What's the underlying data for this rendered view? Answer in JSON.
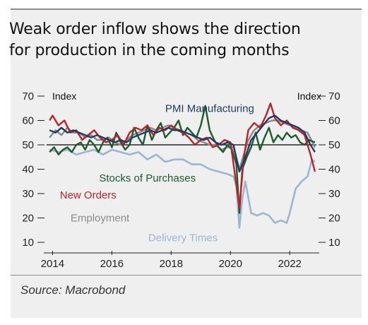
{
  "title_line1": "Weak order inflow shows the direction",
  "title_line2": "for production in the coming months",
  "source": "Source: Macrobond",
  "chart_data": {
    "type": "line",
    "title": "Weak order inflow shows the direction for production in the coming months",
    "ylabel_left": "Index",
    "ylabel_right": "Index",
    "ylim": [
      10,
      70
    ],
    "yticks": [
      10,
      20,
      30,
      40,
      50,
      60,
      70
    ],
    "xlim": [
      2013.8,
      2022.9
    ],
    "xticks": [
      2014,
      2016,
      2018,
      2020,
      2022
    ],
    "reference_line": 50,
    "grid": false,
    "series": [
      {
        "name": "PMI Manufacturing",
        "color": "#1f3b64",
        "label_pos": [
          2019.3,
          63.5
        ],
        "x": [
          2013.9,
          2014.1,
          2014.3,
          2014.5,
          2014.7,
          2014.9,
          2015.1,
          2015.3,
          2015.5,
          2015.7,
          2015.9,
          2016.1,
          2016.3,
          2016.5,
          2016.7,
          2016.9,
          2017.1,
          2017.3,
          2017.5,
          2017.7,
          2017.9,
          2018.1,
          2018.3,
          2018.5,
          2018.7,
          2018.9,
          2019.1,
          2019.3,
          2019.5,
          2019.7,
          2019.9,
          2020.1,
          2020.3,
          2020.5,
          2020.7,
          2020.9,
          2021.1,
          2021.3,
          2021.5,
          2021.7,
          2021.9,
          2022.1,
          2022.3,
          2022.5,
          2022.7,
          2022.85
        ],
        "values": [
          56,
          55,
          57,
          55,
          56,
          55,
          54,
          53,
          54,
          53,
          52,
          51,
          52,
          51,
          53,
          54,
          55,
          56,
          55,
          56,
          57,
          56,
          56,
          55,
          54,
          53,
          52,
          53,
          51,
          50,
          51,
          50,
          39,
          45,
          52,
          55,
          58,
          61,
          62,
          60,
          59,
          58,
          57,
          55,
          50,
          47
        ]
      },
      {
        "name": "New Orders",
        "color": "#b8232b",
        "label_pos": [
          2015.2,
          28
        ],
        "x": [
          2013.9,
          2014.0,
          2014.2,
          2014.4,
          2014.6,
          2014.8,
          2015.0,
          2015.2,
          2015.4,
          2015.6,
          2015.8,
          2016.0,
          2016.2,
          2016.4,
          2016.6,
          2016.8,
          2017.0,
          2017.2,
          2017.4,
          2017.6,
          2017.8,
          2018.0,
          2018.2,
          2018.4,
          2018.6,
          2018.8,
          2019.0,
          2019.2,
          2019.4,
          2019.6,
          2019.8,
          2020.0,
          2020.15,
          2020.3,
          2020.45,
          2020.6,
          2020.8,
          2021.0,
          2021.2,
          2021.35,
          2021.5,
          2021.7,
          2021.9,
          2022.1,
          2022.3,
          2022.5,
          2022.7,
          2022.85
        ],
        "values": [
          60,
          62,
          58,
          60,
          55,
          56,
          52,
          54,
          56,
          53,
          51,
          52,
          54,
          50,
          55,
          57,
          56,
          58,
          54,
          57,
          56,
          58,
          56,
          55,
          53,
          50,
          52,
          53,
          49,
          50,
          52,
          51,
          38,
          24,
          45,
          56,
          59,
          57,
          62,
          67,
          61,
          58,
          60,
          57,
          56,
          54,
          46,
          39
        ]
      },
      {
        "name": "Employment",
        "color": "#8a8a8a",
        "label_pos": [
          2015.6,
          18.5
        ],
        "x": [
          2013.9,
          2014.1,
          2014.3,
          2014.5,
          2014.7,
          2014.9,
          2015.1,
          2015.3,
          2015.5,
          2015.7,
          2015.9,
          2016.1,
          2016.3,
          2016.5,
          2016.7,
          2016.9,
          2017.1,
          2017.3,
          2017.5,
          2017.7,
          2017.9,
          2018.1,
          2018.3,
          2018.5,
          2018.7,
          2018.9,
          2019.1,
          2019.3,
          2019.5,
          2019.7,
          2019.9,
          2020.1,
          2020.3,
          2020.45,
          2020.6,
          2020.8,
          2021.0,
          2021.2,
          2021.4,
          2021.6,
          2021.8,
          2022.0,
          2022.2,
          2022.4,
          2022.6,
          2022.85
        ],
        "values": [
          53,
          56,
          54,
          57,
          55,
          55,
          53,
          54,
          52,
          52,
          53,
          51,
          50,
          52,
          54,
          55,
          56,
          57,
          56,
          57,
          58,
          57,
          56,
          55,
          54,
          52,
          51,
          50,
          50,
          48,
          49,
          49,
          40,
          46,
          52,
          56,
          58,
          59,
          60,
          60,
          59,
          58,
          57,
          56,
          55,
          49
        ]
      },
      {
        "name": "Stocks of Purchases",
        "color": "#1d5a2e",
        "label_pos": [
          2017.2,
          35
        ],
        "x": [
          2013.9,
          2014.05,
          2014.2,
          2014.35,
          2014.5,
          2014.65,
          2014.8,
          2014.95,
          2015.1,
          2015.25,
          2015.4,
          2015.55,
          2015.7,
          2015.85,
          2016.0,
          2016.15,
          2016.3,
          2016.45,
          2016.6,
          2016.75,
          2016.9,
          2017.05,
          2017.2,
          2017.35,
          2017.5,
          2017.65,
          2017.8,
          2017.95,
          2018.1,
          2018.25,
          2018.4,
          2018.55,
          2018.7,
          2018.85,
          2019.0,
          2019.15,
          2019.3,
          2019.45,
          2019.6,
          2019.75,
          2019.9,
          2020.05,
          2020.2,
          2020.3,
          2020.4,
          2020.55,
          2020.7,
          2020.85,
          2021.0,
          2021.15,
          2021.3,
          2021.45,
          2021.6,
          2021.75,
          2021.9,
          2022.05,
          2022.2,
          2022.35,
          2022.5,
          2022.65,
          2022.85
        ],
        "values": [
          47,
          49,
          46,
          48,
          49,
          47,
          50,
          51,
          48,
          52,
          50,
          47,
          51,
          53,
          49,
          55,
          51,
          48,
          50,
          57,
          53,
          50,
          58,
          52,
          56,
          59,
          53,
          55,
          57,
          60,
          54,
          57,
          55,
          53,
          58,
          66,
          56,
          52,
          49,
          47,
          50,
          48,
          42,
          22,
          40,
          45,
          49,
          55,
          48,
          53,
          57,
          51,
          54,
          52,
          55,
          53,
          54,
          51,
          50,
          52,
          51
        ]
      },
      {
        "name": "Delivery Times",
        "color": "#9db5cf",
        "label_pos": [
          2018.4,
          10.5
        ],
        "x": [
          2013.9,
          2014.2,
          2014.5,
          2014.8,
          2015.1,
          2015.4,
          2015.7,
          2016.0,
          2016.3,
          2016.6,
          2016.9,
          2017.2,
          2017.5,
          2017.8,
          2018.1,
          2018.4,
          2018.7,
          2019.0,
          2019.3,
          2019.6,
          2019.9,
          2020.1,
          2020.2,
          2020.3,
          2020.4,
          2020.5,
          2020.7,
          2020.9,
          2021.1,
          2021.3,
          2021.5,
          2021.7,
          2021.9,
          2022.0,
          2022.2,
          2022.4,
          2022.6,
          2022.75,
          2022.85
        ],
        "values": [
          48,
          47,
          48,
          46,
          47,
          48,
          46,
          48,
          47,
          46,
          47,
          44,
          46,
          43,
          44,
          44,
          42,
          42,
          40,
          39,
          38,
          37,
          33,
          16,
          28,
          35,
          22,
          21,
          22,
          21,
          18,
          19,
          18,
          22,
          32,
          35,
          37,
          44,
          43
        ]
      }
    ]
  }
}
